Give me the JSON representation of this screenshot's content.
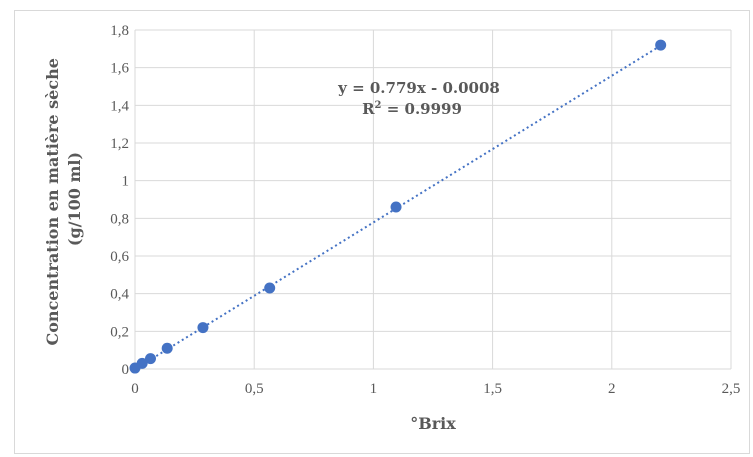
{
  "chart_data": {
    "type": "scatter",
    "xlabel": "°Brix",
    "ylabel": [
      "Concentration en matière sèche",
      "(g/100 ml)"
    ],
    "xlim": [
      0,
      2.5
    ],
    "ylim": [
      0,
      1.8
    ],
    "xticks": [
      0,
      0.5,
      1,
      1.5,
      2,
      2.5
    ],
    "xtick_labels": [
      "0",
      "0,5",
      "1",
      "1,5",
      "2",
      "2,5"
    ],
    "yticks": [
      0,
      0.2,
      0.4,
      0.6,
      0.8,
      1,
      1.2,
      1.4,
      1.6,
      1.8
    ],
    "ytick_labels": [
      "0",
      "0,2",
      "0,4",
      "0,6",
      "0,8",
      "1",
      "1,2",
      "1,4",
      "1,6",
      "1,8"
    ],
    "grid": true,
    "series": [
      {
        "x": [
          0.0,
          0.03,
          0.065,
          0.135,
          0.285,
          0.565,
          1.095,
          2.205
        ],
        "y": [
          0.005,
          0.03,
          0.055,
          0.11,
          0.22,
          0.43,
          0.86,
          1.72
        ],
        "color": "#4472c4"
      }
    ],
    "trendline": {
      "type": "linear",
      "slope": 0.779,
      "intercept": -0.0008,
      "x_range": [
        0,
        2.205
      ],
      "style": "dotted",
      "color": "#4472c4"
    },
    "annotations": {
      "equation": "y = 0.779x - 0.0008",
      "r2_prefix": "R",
      "r2_sup": "2",
      "r2_suffix": " = 0.9999"
    }
  }
}
